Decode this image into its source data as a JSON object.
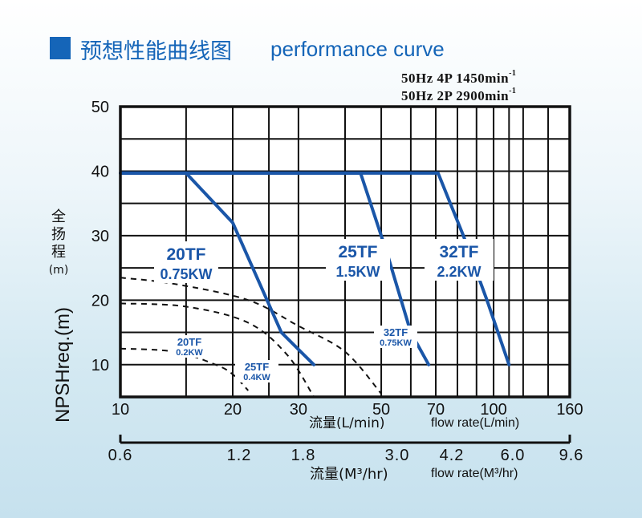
{
  "header": {
    "title_cn": "预想性能曲线图",
    "title_en": "performance curve",
    "speed_lines": [
      {
        "text": "50Hz  4P  1450min",
        "sup": "-1"
      },
      {
        "text": "50Hz  2P  2900min",
        "sup": "-1"
      }
    ]
  },
  "colors": {
    "title_blue": "#1565b8",
    "curve_blue": "#1a56a8",
    "grid": "#111111"
  },
  "chart_data": {
    "type": "line",
    "x_scale": "log",
    "y_scale": "linear",
    "ylim": [
      5,
      50
    ],
    "y_ticks": [
      10,
      20,
      30,
      40,
      50
    ],
    "y_axis_label_cn": "全扬程",
    "y_axis_unit": "(m)",
    "y_axis_label_alt": "NPSHreq.(m)",
    "x_axis_top": {
      "xlim": [
        10,
        160
      ],
      "ticks": [
        10,
        20,
        30,
        50,
        70,
        100,
        160
      ],
      "tick_labels": [
        "10",
        "20",
        "30",
        "50",
        "70",
        "100",
        "160"
      ],
      "grid_lines": [
        10,
        15,
        20,
        25,
        30,
        40,
        50,
        60,
        70,
        80,
        90,
        100,
        110,
        120,
        140,
        160
      ],
      "label_cn": "流量(L/min)",
      "label_en": "flow rate(L/min)"
    },
    "x_axis_bottom": {
      "ticks": [
        0.6,
        1.2,
        1.8,
        3.0,
        4.2,
        6.0,
        9.6
      ],
      "tick_labels": [
        "0.6",
        "1.2",
        "1.8",
        "3.0",
        "4.2",
        "6.0",
        "9.6"
      ],
      "label_cn": "流量(M³/hr)",
      "label_en": "flow rate(M³/hr)"
    },
    "series": [
      {
        "name": "20TF",
        "power": "0.75KW",
        "style": "solid",
        "axis": "head",
        "points": [
          [
            10,
            39.7
          ],
          [
            15,
            39.7
          ],
          [
            20,
            32
          ],
          [
            27,
            15
          ],
          [
            33,
            10
          ]
        ]
      },
      {
        "name": "25TF",
        "power": "1.5KW",
        "style": "solid",
        "axis": "head",
        "points": [
          [
            10,
            39.7
          ],
          [
            44,
            39.7
          ],
          [
            52,
            27
          ],
          [
            60,
            15
          ],
          [
            67,
            10
          ]
        ]
      },
      {
        "name": "32TF",
        "power": "2.2KW",
        "style": "solid",
        "axis": "head",
        "points": [
          [
            10,
            39.7
          ],
          [
            71,
            39.7
          ],
          [
            83,
            30
          ],
          [
            96,
            20
          ],
          [
            110,
            10
          ]
        ]
      },
      {
        "name": "20TF",
        "power": "0.2KW",
        "style": "dashed",
        "axis": "npsh",
        "points": [
          [
            10,
            12.5
          ],
          [
            14,
            12
          ],
          [
            18,
            10
          ],
          [
            20,
            8.5
          ],
          [
            22,
            6
          ]
        ]
      },
      {
        "name": "25TF",
        "power": "0.4KW",
        "style": "dashed",
        "axis": "npsh",
        "points": [
          [
            10,
            19.5
          ],
          [
            15,
            19
          ],
          [
            22,
            16.5
          ],
          [
            28,
            11.5
          ],
          [
            33,
            5
          ]
        ]
      },
      {
        "name": "32TF",
        "power": "0.75KW",
        "style": "dashed",
        "axis": "npsh",
        "points": [
          [
            10,
            23.5
          ],
          [
            14,
            22.5
          ],
          [
            22,
            20
          ],
          [
            30,
            16
          ],
          [
            40,
            12
          ],
          [
            50,
            5.5
          ]
        ]
      }
    ]
  }
}
